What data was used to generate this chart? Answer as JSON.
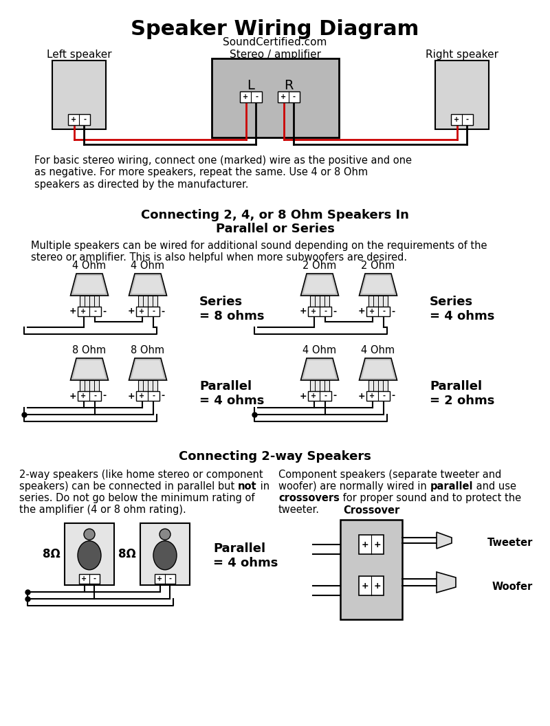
{
  "title": "Speaker Wiring Diagram",
  "subtitle": "SoundCertified.com",
  "bg_color": "#ffffff",
  "wire_red": "#cc0000",
  "section1_para": "For basic stereo wiring, connect one (marked) wire as the positive and one\nas negative. For more speakers, repeat the same. Use 4 or 8 Ohm\nspeakers as directed by the manufacturer.",
  "section2_title_line1": "Connecting 2, 4, or 8 Ohm Speakers In",
  "section2_title_line2": "Parallel or Series",
  "section2_para": "Multiple speakers can be wired for additional sound depending on the requirements of the\nstereo or amplifier. This is also helpful when more subwoofers are desired.",
  "section3_title": "Connecting 2-way Speakers",
  "twoway_para_left_1": "2-way speakers (like home stereo or component",
  "twoway_para_left_2": "speakers) can be connected in parallel but ",
  "twoway_para_left_2b": "not",
  "twoway_para_left_3": " in",
  "twoway_para_left_4": "series. Do not go below the minimum rating of",
  "twoway_para_left_5": "the amplifier (4 or 8 ohm rating).",
  "twoway_para_right_1": "Component speakers (separate tweeter and",
  "twoway_para_right_2": "woofer) are normally wired in ",
  "twoway_para_right_2b": "parallel",
  "twoway_para_right_3": " and use",
  "twoway_para_right_4b": "crossovers",
  "twoway_para_right_4": " for proper sound and to protect the",
  "twoway_para_right_5": "tweeter.",
  "tweeter_label": "Tweeter",
  "woofer_label": "Woofer",
  "crossover_label": "Crossover"
}
